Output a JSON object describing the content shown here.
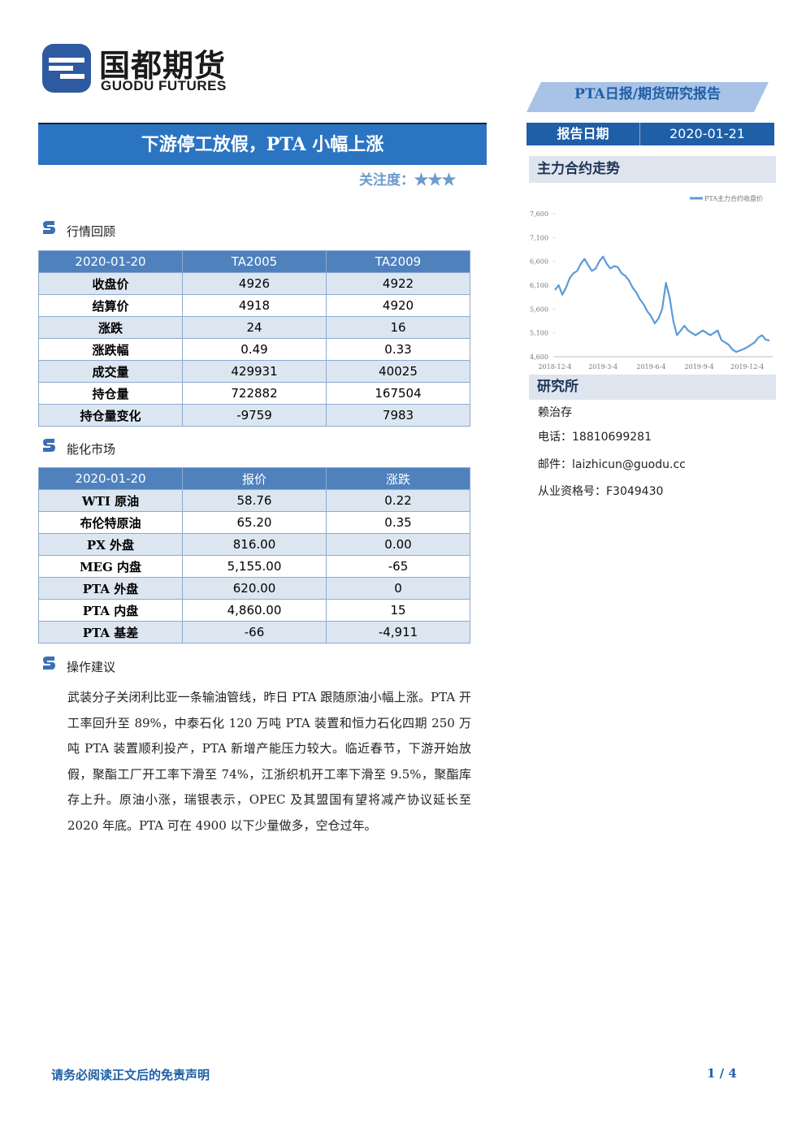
{
  "header": {
    "logo_cn": "国都期货",
    "logo_en": "GUODU FUTURES",
    "report_type": "PTA日报/期货研究报告",
    "date_label": "报告日期",
    "date": "2020-01-21"
  },
  "title": "下游停工放假，PTA 小幅上涨",
  "attention": {
    "label": "关注度：",
    "stars": "★★★"
  },
  "sections": [
    {
      "heading": "行情回顾",
      "table": {
        "header": [
          "2020-01-20",
          "TA2005",
          "TA2009"
        ],
        "rows": [
          [
            "收盘价",
            "4926",
            "4922"
          ],
          [
            "结算价",
            "4918",
            "4920"
          ],
          [
            "涨跌",
            "24",
            "16"
          ],
          [
            "涨跌幅",
            "0.49",
            "0.33"
          ],
          [
            "成交量",
            "429931",
            "40025"
          ],
          [
            "持仓量",
            "722882",
            "167504"
          ],
          [
            "持仓量变化",
            "-9759",
            "7983"
          ]
        ]
      }
    },
    {
      "heading": "能化市场",
      "table": {
        "header": [
          "2020-01-20",
          "报价",
          "涨跌"
        ],
        "rows": [
          [
            "WTI 原油",
            "58.76",
            "0.22"
          ],
          [
            "布伦特原油",
            "65.20",
            "0.35"
          ],
          [
            "PX 外盘",
            "816.00",
            "0.00"
          ],
          [
            "MEG 内盘",
            "5,155.00",
            "-65"
          ],
          [
            "PTA 外盘",
            "620.00",
            "0"
          ],
          [
            "PTA 内盘",
            "4,860.00",
            "15"
          ],
          [
            "PTA 基差",
            "-66",
            "-4,911"
          ]
        ]
      }
    },
    {
      "heading": "操作建议",
      "text": "武装分子关闭利比亚一条输油管线，昨日 PTA 跟随原油小幅上涨。PTA 开工率回升至 89%，中泰石化 120 万吨 PTA 装置和恒力石化四期 250 万吨 PTA 装置顺利投产，PTA 新增产能压力较大。临近春节，下游开始放假，聚酯工厂开工率下滑至 74%，江浙织机开工率下滑至 9.5%，聚酯库存上升。原油小涨，瑞银表示，OPEC 及其盟国有望将减产协议延长至 2020 年底。PTA 可在 4900 以下少量做多，空仓过年。"
    }
  ],
  "sidebar": {
    "chart_title": "主力合约走势",
    "institute": "研究所",
    "analyst": "赖治存",
    "contacts": [
      {
        "label": "电话：",
        "value": "18810699281"
      },
      {
        "label": "邮件：",
        "value": "laizhicun@guodu.cc"
      },
      {
        "label": "从业资格号：",
        "value": "F3049430"
      }
    ]
  },
  "chart_data": {
    "type": "line",
    "categories": [
      "2018-12-4",
      null,
      null,
      null,
      null,
      null,
      null,
      null,
      null,
      null,
      null,
      null,
      null,
      "2019-3-4",
      null,
      null,
      null,
      null,
      null,
      null,
      null,
      null,
      null,
      null,
      null,
      null,
      "2019-6-4",
      null,
      null,
      null,
      null,
      null,
      null,
      null,
      null,
      null,
      null,
      null,
      null,
      "2019-9-4",
      null,
      null,
      null,
      null,
      null,
      null,
      null,
      null,
      null,
      null,
      null,
      null,
      "2019-12-4",
      null,
      null,
      null,
      null,
      null,
      null
    ],
    "series": [
      {
        "name": "PTA主力合约收盘价",
        "color": "#5b9bd5",
        "values": [
          6000,
          6100,
          5900,
          6050,
          6250,
          6350,
          6400,
          6550,
          6650,
          6520,
          6400,
          6450,
          6600,
          6700,
          6550,
          6450,
          6500,
          6480,
          6350,
          6300,
          6200,
          6050,
          5950,
          5800,
          5700,
          5550,
          5450,
          5300,
          5400,
          5600,
          6150,
          5850,
          5350,
          5050,
          5150,
          5250,
          5150,
          5100,
          5050,
          5100,
          5150,
          5100,
          5050,
          5100,
          5150,
          4950,
          4900,
          4850,
          4750,
          4700,
          4730,
          4760,
          4800,
          4850,
          4900,
          5000,
          5050,
          4960,
          4940
        ]
      }
    ],
    "ylim": [
      4600,
      7600
    ],
    "yticks": [
      {
        "value": 4600,
        "label": "4,600"
      },
      {
        "value": 5100,
        "label": "5,100"
      },
      {
        "value": 5600,
        "label": "5,600"
      },
      {
        "value": 6100,
        "label": "6,100"
      },
      {
        "value": 6600,
        "label": "6,600"
      },
      {
        "value": 7100,
        "label": "7,100"
      },
      {
        "value": 7600,
        "label": "7,600"
      }
    ],
    "grid": false,
    "legend": "top-right"
  },
  "footer": {
    "disclaimer": "请务必阅读正文后的免责声明",
    "page": "1 / 4"
  }
}
